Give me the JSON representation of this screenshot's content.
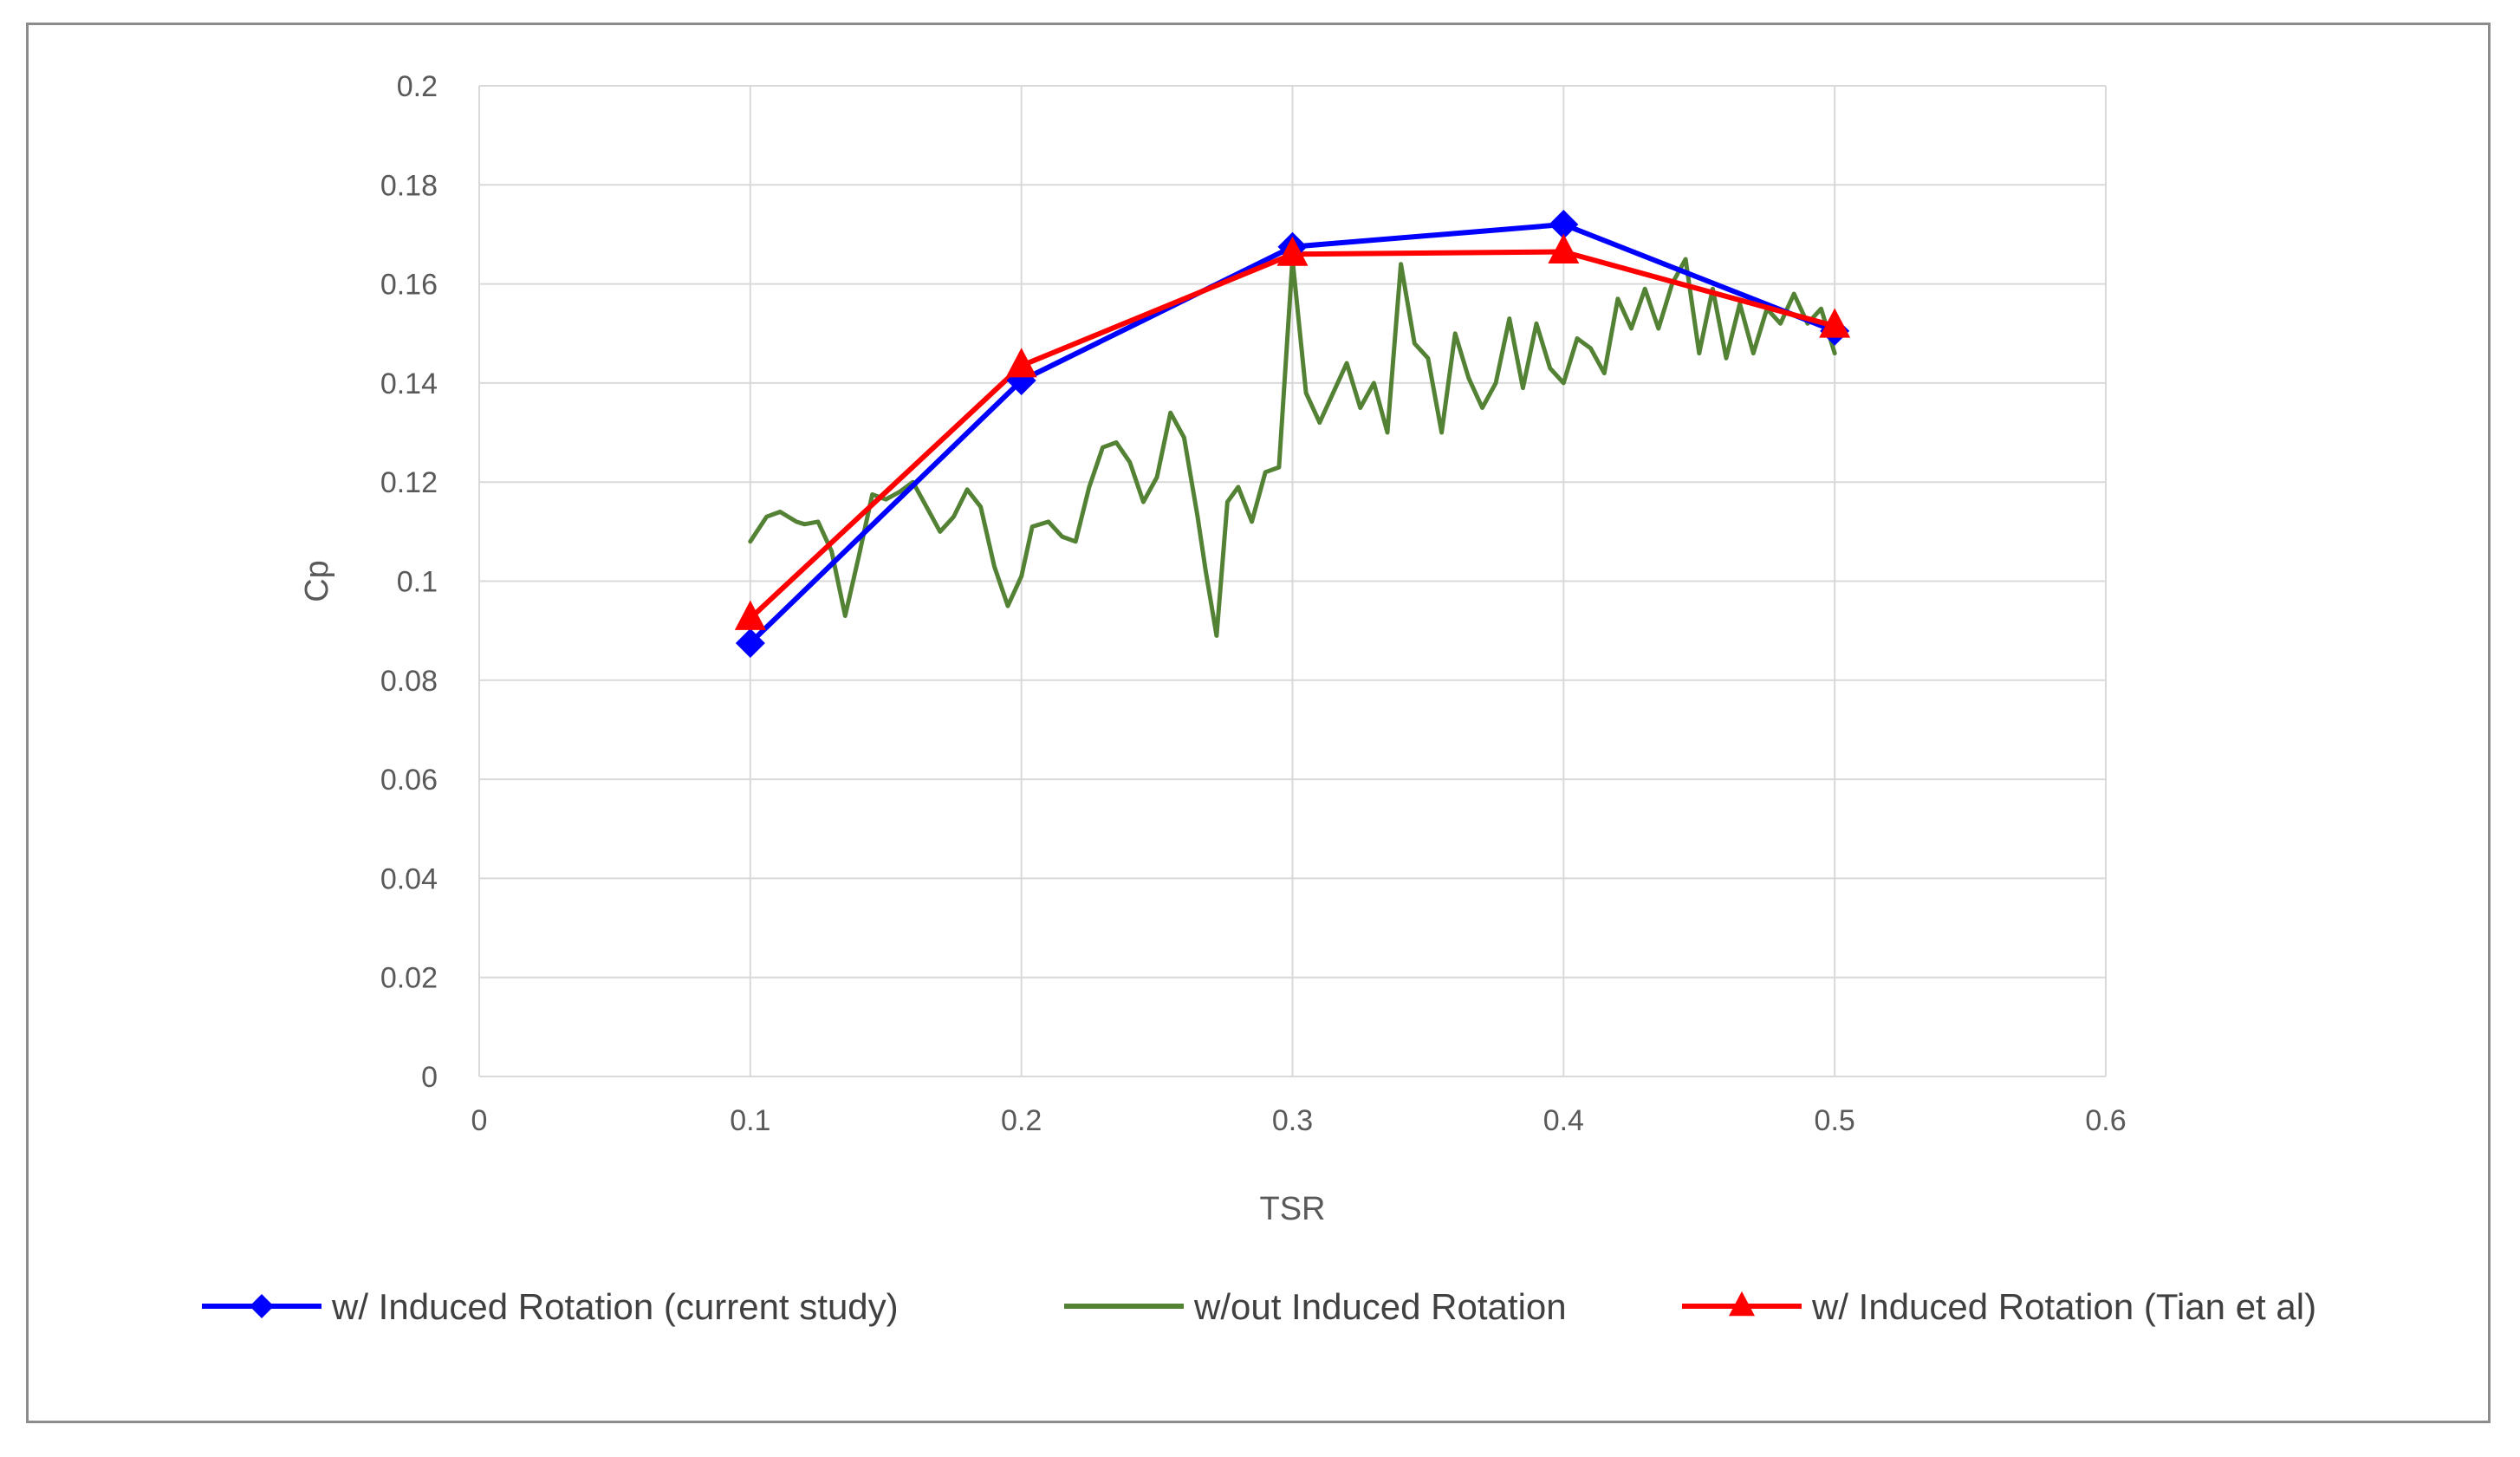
{
  "chart_data": {
    "type": "line",
    "title": "",
    "xlabel": "TSR",
    "ylabel": "Cp",
    "xlim": [
      0,
      0.6
    ],
    "ylim": [
      0,
      0.2
    ],
    "xticks": [
      "0",
      "0.1",
      "0.2",
      "0.3",
      "0.4",
      "0.5",
      "0.6"
    ],
    "yticks": [
      "0",
      "0.02",
      "0.04",
      "0.06",
      "0.08",
      "0.1",
      "0.12",
      "0.14",
      "0.16",
      "0.18",
      "0.2"
    ],
    "grid": "horizontal and vertical",
    "legend_position": "bottom",
    "series": [
      {
        "name": "w/ Induced Rotation (current study)",
        "color": "#0000ff",
        "marker": "diamond",
        "x": [
          0.1,
          0.2,
          0.3,
          0.4,
          0.5
        ],
        "y": [
          0.0875,
          0.1405,
          0.1675,
          0.172,
          0.1505
        ]
      },
      {
        "name": "w/out Induced Rotation",
        "color": "#548235",
        "marker": "none",
        "x": [
          0.1,
          0.106,
          0.111,
          0.117,
          0.12,
          0.125,
          0.13,
          0.135,
          0.14,
          0.145,
          0.15,
          0.155,
          0.16,
          0.165,
          0.17,
          0.175,
          0.18,
          0.185,
          0.19,
          0.195,
          0.2,
          0.204,
          0.21,
          0.215,
          0.22,
          0.225,
          0.23,
          0.235,
          0.24,
          0.245,
          0.25,
          0.255,
          0.26,
          0.265,
          0.268,
          0.272,
          0.276,
          0.28,
          0.285,
          0.29,
          0.295,
          0.3,
          0.305,
          0.31,
          0.315,
          0.32,
          0.325,
          0.33,
          0.335,
          0.34,
          0.345,
          0.35,
          0.355,
          0.36,
          0.365,
          0.37,
          0.375,
          0.38,
          0.385,
          0.39,
          0.395,
          0.4,
          0.405,
          0.41,
          0.415,
          0.42,
          0.425,
          0.43,
          0.435,
          0.44,
          0.445,
          0.45,
          0.455,
          0.46,
          0.465,
          0.47,
          0.475,
          0.48,
          0.485,
          0.49,
          0.495,
          0.5
        ],
        "y": [
          0.108,
          0.113,
          0.114,
          0.112,
          0.1115,
          0.112,
          0.106,
          0.093,
          0.105,
          0.1175,
          0.1165,
          0.118,
          0.12,
          0.115,
          0.11,
          0.113,
          0.1185,
          0.115,
          0.103,
          0.095,
          0.101,
          0.111,
          0.112,
          0.109,
          0.108,
          0.119,
          0.127,
          0.128,
          0.124,
          0.116,
          0.121,
          0.134,
          0.129,
          0.113,
          0.102,
          0.089,
          0.116,
          0.119,
          0.112,
          0.122,
          0.123,
          0.165,
          0.138,
          0.132,
          0.138,
          0.144,
          0.135,
          0.14,
          0.13,
          0.164,
          0.148,
          0.145,
          0.13,
          0.15,
          0.141,
          0.135,
          0.14,
          0.153,
          0.139,
          0.152,
          0.143,
          0.14,
          0.149,
          0.147,
          0.142,
          0.157,
          0.151,
          0.159,
          0.151,
          0.16,
          0.165,
          0.146,
          0.159,
          0.145,
          0.156,
          0.146,
          0.155,
          0.152,
          0.158,
          0.152,
          0.155,
          0.146
        ]
      },
      {
        "name": "w/ Induced Rotation (Tian et al)",
        "color": "#ff0000",
        "marker": "triangle",
        "x": [
          0.1,
          0.2,
          0.3,
          0.4,
          0.5
        ],
        "y": [
          0.0925,
          0.1435,
          0.166,
          0.1665,
          0.1515
        ]
      }
    ]
  }
}
